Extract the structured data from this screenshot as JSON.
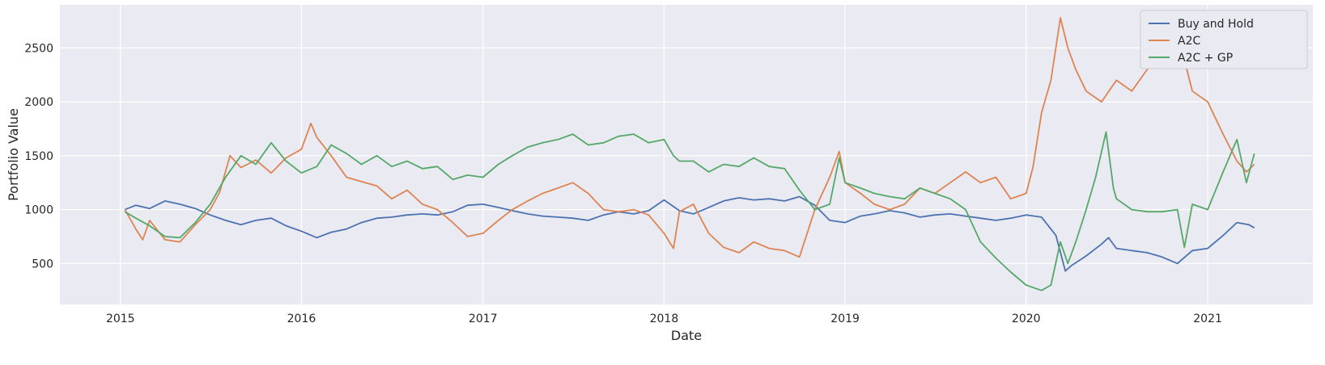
{
  "chart_data": {
    "type": "line",
    "title": "",
    "xlabel": "Date",
    "ylabel": "Portfolio Value",
    "x_type": "date",
    "xlim": [
      "2014-09-01",
      "2021-08-01"
    ],
    "ylim": [
      120,
      2900
    ],
    "x_ticks": [
      {
        "date": "2015-01-01",
        "label": "2015"
      },
      {
        "date": "2016-01-01",
        "label": "2016"
      },
      {
        "date": "2017-01-01",
        "label": "2017"
      },
      {
        "date": "2018-01-01",
        "label": "2018"
      },
      {
        "date": "2019-01-01",
        "label": "2019"
      },
      {
        "date": "2020-01-01",
        "label": "2020"
      },
      {
        "date": "2021-01-01",
        "label": "2021"
      }
    ],
    "y_ticks": [
      500,
      1000,
      1500,
      2000,
      2500
    ],
    "grid": true,
    "legend_position": "top-right",
    "colors": {
      "background": "#eaeaf2",
      "grid": "#ffffff"
    },
    "series": [
      {
        "name": "Buy and Hold",
        "color": "#4c72b0",
        "points": [
          [
            "2015-01-10",
            1000
          ],
          [
            "2015-02-01",
            1040
          ],
          [
            "2015-03-01",
            1010
          ],
          [
            "2015-04-01",
            1080
          ],
          [
            "2015-05-01",
            1050
          ],
          [
            "2015-06-01",
            1010
          ],
          [
            "2015-07-01",
            950
          ],
          [
            "2015-08-01",
            900
          ],
          [
            "2015-09-01",
            860
          ],
          [
            "2015-10-01",
            900
          ],
          [
            "2015-11-01",
            920
          ],
          [
            "2015-12-01",
            850
          ],
          [
            "2016-01-01",
            800
          ],
          [
            "2016-02-01",
            740
          ],
          [
            "2016-03-01",
            790
          ],
          [
            "2016-04-01",
            820
          ],
          [
            "2016-05-01",
            880
          ],
          [
            "2016-06-01",
            920
          ],
          [
            "2016-07-01",
            930
          ],
          [
            "2016-08-01",
            950
          ],
          [
            "2016-09-01",
            960
          ],
          [
            "2016-10-01",
            950
          ],
          [
            "2016-11-01",
            980
          ],
          [
            "2016-12-01",
            1040
          ],
          [
            "2017-01-01",
            1050
          ],
          [
            "2017-02-01",
            1020
          ],
          [
            "2017-03-01",
            990
          ],
          [
            "2017-04-01",
            960
          ],
          [
            "2017-05-01",
            940
          ],
          [
            "2017-06-01",
            930
          ],
          [
            "2017-07-01",
            920
          ],
          [
            "2017-08-01",
            900
          ],
          [
            "2017-09-01",
            950
          ],
          [
            "2017-10-01",
            980
          ],
          [
            "2017-11-01",
            960
          ],
          [
            "2017-12-01",
            990
          ],
          [
            "2018-01-01",
            1090
          ],
          [
            "2018-02-01",
            990
          ],
          [
            "2018-03-01",
            960
          ],
          [
            "2018-04-01",
            1020
          ],
          [
            "2018-05-01",
            1080
          ],
          [
            "2018-06-01",
            1110
          ],
          [
            "2018-07-01",
            1090
          ],
          [
            "2018-08-01",
            1100
          ],
          [
            "2018-09-01",
            1080
          ],
          [
            "2018-10-01",
            1120
          ],
          [
            "2018-11-01",
            1040
          ],
          [
            "2018-12-01",
            900
          ],
          [
            "2019-01-01",
            880
          ],
          [
            "2019-02-01",
            940
          ],
          [
            "2019-03-01",
            960
          ],
          [
            "2019-04-01",
            990
          ],
          [
            "2019-05-01",
            970
          ],
          [
            "2019-06-01",
            930
          ],
          [
            "2019-07-01",
            950
          ],
          [
            "2019-08-01",
            960
          ],
          [
            "2019-09-01",
            940
          ],
          [
            "2019-10-01",
            920
          ],
          [
            "2019-11-01",
            900
          ],
          [
            "2019-12-01",
            920
          ],
          [
            "2020-01-01",
            950
          ],
          [
            "2020-02-01",
            930
          ],
          [
            "2020-03-01",
            760
          ],
          [
            "2020-03-20",
            430
          ],
          [
            "2020-04-01",
            480
          ],
          [
            "2020-05-01",
            570
          ],
          [
            "2020-06-01",
            680
          ],
          [
            "2020-06-15",
            740
          ],
          [
            "2020-07-01",
            640
          ],
          [
            "2020-08-01",
            620
          ],
          [
            "2020-09-01",
            600
          ],
          [
            "2020-10-01",
            560
          ],
          [
            "2020-11-01",
            500
          ],
          [
            "2020-12-01",
            620
          ],
          [
            "2021-01-01",
            640
          ],
          [
            "2021-02-01",
            760
          ],
          [
            "2021-03-01",
            880
          ],
          [
            "2021-03-25",
            860
          ],
          [
            "2021-04-05",
            830
          ]
        ]
      },
      {
        "name": "A2C",
        "color": "#dd8452",
        "points": [
          [
            "2015-01-10",
            1000
          ],
          [
            "2015-02-01",
            820
          ],
          [
            "2015-02-15",
            720
          ],
          [
            "2015-03-01",
            900
          ],
          [
            "2015-04-01",
            720
          ],
          [
            "2015-05-01",
            700
          ],
          [
            "2015-06-01",
            860
          ],
          [
            "2015-07-01",
            1000
          ],
          [
            "2015-07-20",
            1160
          ],
          [
            "2015-08-10",
            1500
          ],
          [
            "2015-09-01",
            1390
          ],
          [
            "2015-10-01",
            1460
          ],
          [
            "2015-11-01",
            1340
          ],
          [
            "2015-12-01",
            1480
          ],
          [
            "2016-01-01",
            1560
          ],
          [
            "2016-01-20",
            1800
          ],
          [
            "2016-02-01",
            1670
          ],
          [
            "2016-03-01",
            1500
          ],
          [
            "2016-04-01",
            1300
          ],
          [
            "2016-05-01",
            1260
          ],
          [
            "2016-06-01",
            1220
          ],
          [
            "2016-07-01",
            1100
          ],
          [
            "2016-08-01",
            1180
          ],
          [
            "2016-09-01",
            1050
          ],
          [
            "2016-10-01",
            1000
          ],
          [
            "2016-11-01",
            880
          ],
          [
            "2016-12-01",
            750
          ],
          [
            "2017-01-01",
            780
          ],
          [
            "2017-02-01",
            900
          ],
          [
            "2017-03-01",
            1000
          ],
          [
            "2017-04-01",
            1080
          ],
          [
            "2017-05-01",
            1150
          ],
          [
            "2017-06-01",
            1200
          ],
          [
            "2017-07-01",
            1250
          ],
          [
            "2017-08-01",
            1150
          ],
          [
            "2017-09-01",
            1000
          ],
          [
            "2017-10-01",
            980
          ],
          [
            "2017-11-01",
            1000
          ],
          [
            "2017-12-01",
            950
          ],
          [
            "2018-01-01",
            780
          ],
          [
            "2018-01-20",
            640
          ],
          [
            "2018-02-01",
            980
          ],
          [
            "2018-03-01",
            1050
          ],
          [
            "2018-04-01",
            780
          ],
          [
            "2018-05-01",
            650
          ],
          [
            "2018-06-01",
            600
          ],
          [
            "2018-07-01",
            700
          ],
          [
            "2018-08-01",
            640
          ],
          [
            "2018-09-01",
            620
          ],
          [
            "2018-10-01",
            560
          ],
          [
            "2018-11-01",
            1000
          ],
          [
            "2018-12-01",
            1300
          ],
          [
            "2018-12-20",
            1540
          ],
          [
            "2019-01-01",
            1250
          ],
          [
            "2019-02-01",
            1150
          ],
          [
            "2019-03-01",
            1050
          ],
          [
            "2019-04-01",
            1000
          ],
          [
            "2019-05-01",
            1050
          ],
          [
            "2019-06-01",
            1200
          ],
          [
            "2019-07-01",
            1150
          ],
          [
            "2019-08-01",
            1250
          ],
          [
            "2019-09-01",
            1350
          ],
          [
            "2019-10-01",
            1250
          ],
          [
            "2019-11-01",
            1300
          ],
          [
            "2019-12-01",
            1100
          ],
          [
            "2020-01-01",
            1150
          ],
          [
            "2020-01-15",
            1400
          ],
          [
            "2020-02-01",
            1900
          ],
          [
            "2020-02-20",
            2200
          ],
          [
            "2020-03-10",
            2780
          ],
          [
            "2020-03-25",
            2500
          ],
          [
            "2020-04-10",
            2300
          ],
          [
            "2020-05-01",
            2100
          ],
          [
            "2020-06-01",
            2000
          ],
          [
            "2020-07-01",
            2200
          ],
          [
            "2020-08-01",
            2100
          ],
          [
            "2020-09-01",
            2300
          ],
          [
            "2020-10-01",
            2450
          ],
          [
            "2020-11-01",
            2500
          ],
          [
            "2020-11-20",
            2300
          ],
          [
            "2020-12-01",
            2100
          ],
          [
            "2021-01-01",
            2000
          ],
          [
            "2021-02-01",
            1700
          ],
          [
            "2021-03-01",
            1450
          ],
          [
            "2021-03-20",
            1350
          ],
          [
            "2021-04-05",
            1420
          ]
        ]
      },
      {
        "name": "A2C + GP",
        "color": "#55a868",
        "points": [
          [
            "2015-01-10",
            980
          ],
          [
            "2015-02-01",
            920
          ],
          [
            "2015-03-01",
            850
          ],
          [
            "2015-04-01",
            750
          ],
          [
            "2015-05-01",
            740
          ],
          [
            "2015-06-01",
            880
          ],
          [
            "2015-07-01",
            1050
          ],
          [
            "2015-08-01",
            1300
          ],
          [
            "2015-09-01",
            1500
          ],
          [
            "2015-10-01",
            1420
          ],
          [
            "2015-11-01",
            1620
          ],
          [
            "2015-12-01",
            1450
          ],
          [
            "2016-01-01",
            1340
          ],
          [
            "2016-02-01",
            1400
          ],
          [
            "2016-03-01",
            1600
          ],
          [
            "2016-04-01",
            1520
          ],
          [
            "2016-05-01",
            1420
          ],
          [
            "2016-06-01",
            1500
          ],
          [
            "2016-07-01",
            1400
          ],
          [
            "2016-08-01",
            1450
          ],
          [
            "2016-09-01",
            1380
          ],
          [
            "2016-10-01",
            1400
          ],
          [
            "2016-11-01",
            1280
          ],
          [
            "2016-12-01",
            1320
          ],
          [
            "2017-01-01",
            1300
          ],
          [
            "2017-02-01",
            1420
          ],
          [
            "2017-03-01",
            1500
          ],
          [
            "2017-04-01",
            1580
          ],
          [
            "2017-05-01",
            1620
          ],
          [
            "2017-06-01",
            1650
          ],
          [
            "2017-07-01",
            1700
          ],
          [
            "2017-08-01",
            1600
          ],
          [
            "2017-09-01",
            1620
          ],
          [
            "2017-10-01",
            1680
          ],
          [
            "2017-11-01",
            1700
          ],
          [
            "2017-12-01",
            1620
          ],
          [
            "2018-01-01",
            1650
          ],
          [
            "2018-01-20",
            1500
          ],
          [
            "2018-02-01",
            1450
          ],
          [
            "2018-03-01",
            1450
          ],
          [
            "2018-04-01",
            1350
          ],
          [
            "2018-05-01",
            1420
          ],
          [
            "2018-06-01",
            1400
          ],
          [
            "2018-07-01",
            1480
          ],
          [
            "2018-08-01",
            1400
          ],
          [
            "2018-09-01",
            1380
          ],
          [
            "2018-10-01",
            1180
          ],
          [
            "2018-11-01",
            1000
          ],
          [
            "2018-12-01",
            1050
          ],
          [
            "2018-12-20",
            1480
          ],
          [
            "2019-01-01",
            1250
          ],
          [
            "2019-02-01",
            1200
          ],
          [
            "2019-03-01",
            1150
          ],
          [
            "2019-04-01",
            1120
          ],
          [
            "2019-05-01",
            1100
          ],
          [
            "2019-06-01",
            1200
          ],
          [
            "2019-07-01",
            1150
          ],
          [
            "2019-08-01",
            1100
          ],
          [
            "2019-09-01",
            1000
          ],
          [
            "2019-10-01",
            700
          ],
          [
            "2019-11-01",
            550
          ],
          [
            "2019-12-01",
            420
          ],
          [
            "2020-01-01",
            300
          ],
          [
            "2020-02-01",
            250
          ],
          [
            "2020-02-20",
            300
          ],
          [
            "2020-03-10",
            700
          ],
          [
            "2020-03-25",
            500
          ],
          [
            "2020-04-10",
            700
          ],
          [
            "2020-05-01",
            1000
          ],
          [
            "2020-05-20",
            1300
          ],
          [
            "2020-06-10",
            1720
          ],
          [
            "2020-06-25",
            1200
          ],
          [
            "2020-07-01",
            1100
          ],
          [
            "2020-08-01",
            1000
          ],
          [
            "2020-09-01",
            980
          ],
          [
            "2020-10-01",
            980
          ],
          [
            "2020-11-01",
            1000
          ],
          [
            "2020-11-15",
            650
          ],
          [
            "2020-12-01",
            1050
          ],
          [
            "2021-01-01",
            1000
          ],
          [
            "2021-02-01",
            1350
          ],
          [
            "2021-03-01",
            1650
          ],
          [
            "2021-03-20",
            1250
          ],
          [
            "2021-04-05",
            1520
          ]
        ]
      }
    ]
  }
}
